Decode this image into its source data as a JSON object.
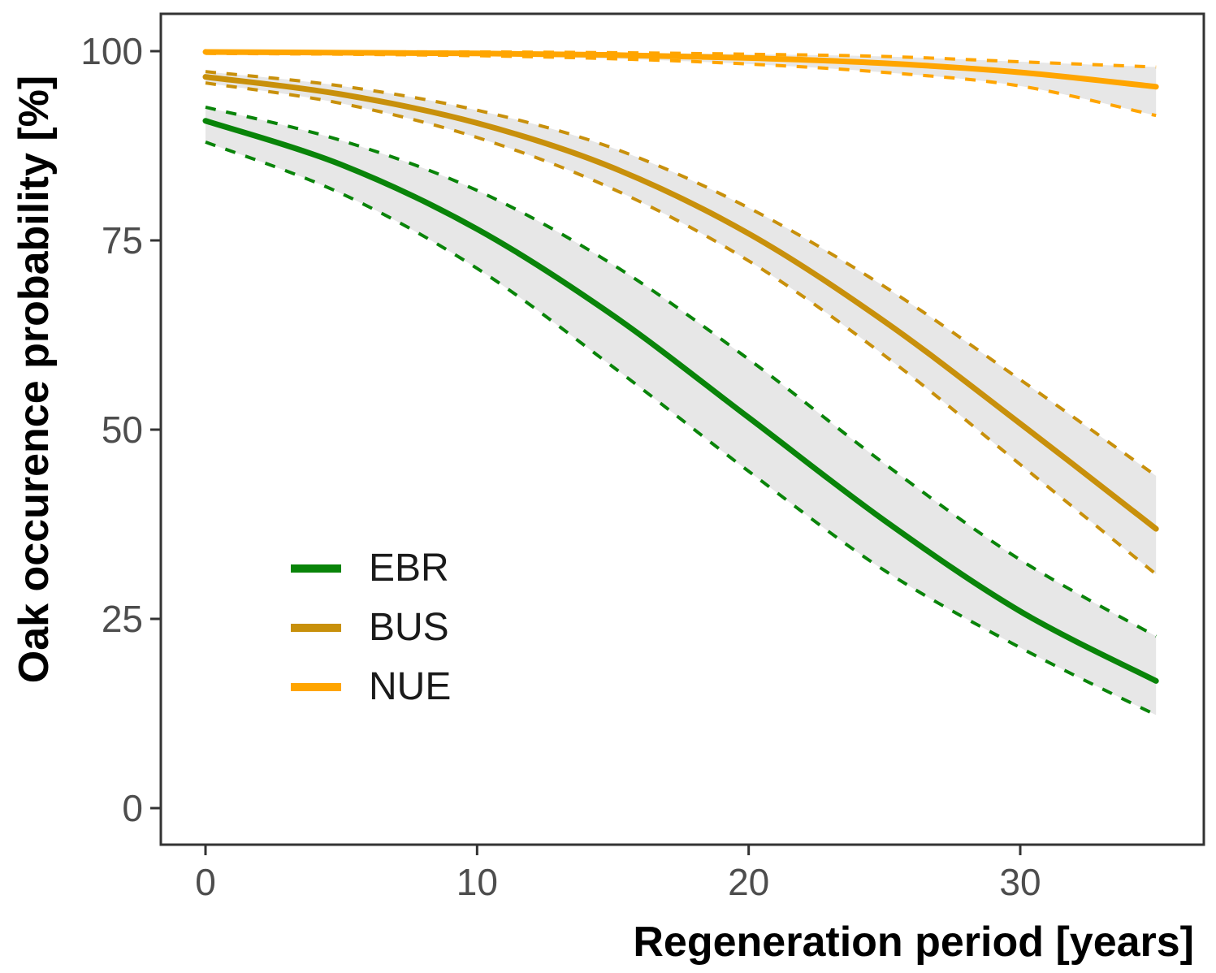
{
  "figure": {
    "y_axis_title": "Oak occurence probability [%]",
    "x_axis_title": "Regeneration period [years]"
  },
  "legend": {
    "position": "inside-lower-left",
    "items": [
      {
        "label": "EBR",
        "color": "#098409"
      },
      {
        "label": "BUS",
        "color": "#C8900B"
      },
      {
        "label": "NUE",
        "color": "#FFA500"
      }
    ]
  },
  "chart_data": {
    "type": "line",
    "title": "",
    "xlabel": "Regeneration period [years]",
    "ylabel": "Oak occurence probability [%]",
    "xlim": [
      0,
      35
    ],
    "ylim": [
      0,
      100
    ],
    "x_ticks": [
      "0",
      "10",
      "20",
      "30"
    ],
    "x_tick_values": [
      0,
      10,
      20,
      30
    ],
    "y_ticks": [
      "0",
      "25",
      "50",
      "75",
      "100"
    ],
    "y_tick_values": [
      0,
      25,
      50,
      75,
      100
    ],
    "grid": false,
    "band_fill": "#E7E7E7",
    "tick_label_color": "#4d4d4d",
    "panel_border_color": "#333333",
    "x": [
      0,
      5,
      10,
      15,
      20,
      25,
      30,
      35
    ],
    "series": [
      {
        "name": "EBR",
        "color": "#098409",
        "mean": [
          90.8,
          85.0,
          76.5,
          65.1,
          51.6,
          38.0,
          26.0,
          16.8
        ],
        "lower": [
          88.0,
          81.2,
          71.3,
          58.3,
          44.5,
          31.4,
          21.2,
          12.3
        ],
        "upper": [
          92.6,
          88.2,
          81.6,
          71.8,
          59.3,
          45.5,
          32.8,
          22.7
        ]
      },
      {
        "name": "BUS",
        "color": "#C8900B",
        "mean": [
          96.6,
          94.3,
          90.5,
          84.6,
          75.9,
          64.3,
          50.8,
          36.9
        ],
        "lower": [
          95.8,
          93.1,
          88.6,
          81.8,
          72.3,
          59.8,
          45.4,
          30.9
        ],
        "upper": [
          97.3,
          95.4,
          92.2,
          87.2,
          79.3,
          68.9,
          56.6,
          43.9
        ]
      },
      {
        "name": "NUE",
        "color": "#FFA500",
        "mean": [
          99.9,
          99.8,
          99.7,
          99.5,
          99.1,
          98.4,
          97.2,
          95.3
        ],
        "lower": [
          99.7,
          99.6,
          99.4,
          99.0,
          98.3,
          97.2,
          95.4,
          91.5
        ],
        "upper": [
          100.0,
          99.9,
          99.9,
          99.8,
          99.6,
          99.3,
          98.6,
          97.9
        ]
      }
    ]
  }
}
